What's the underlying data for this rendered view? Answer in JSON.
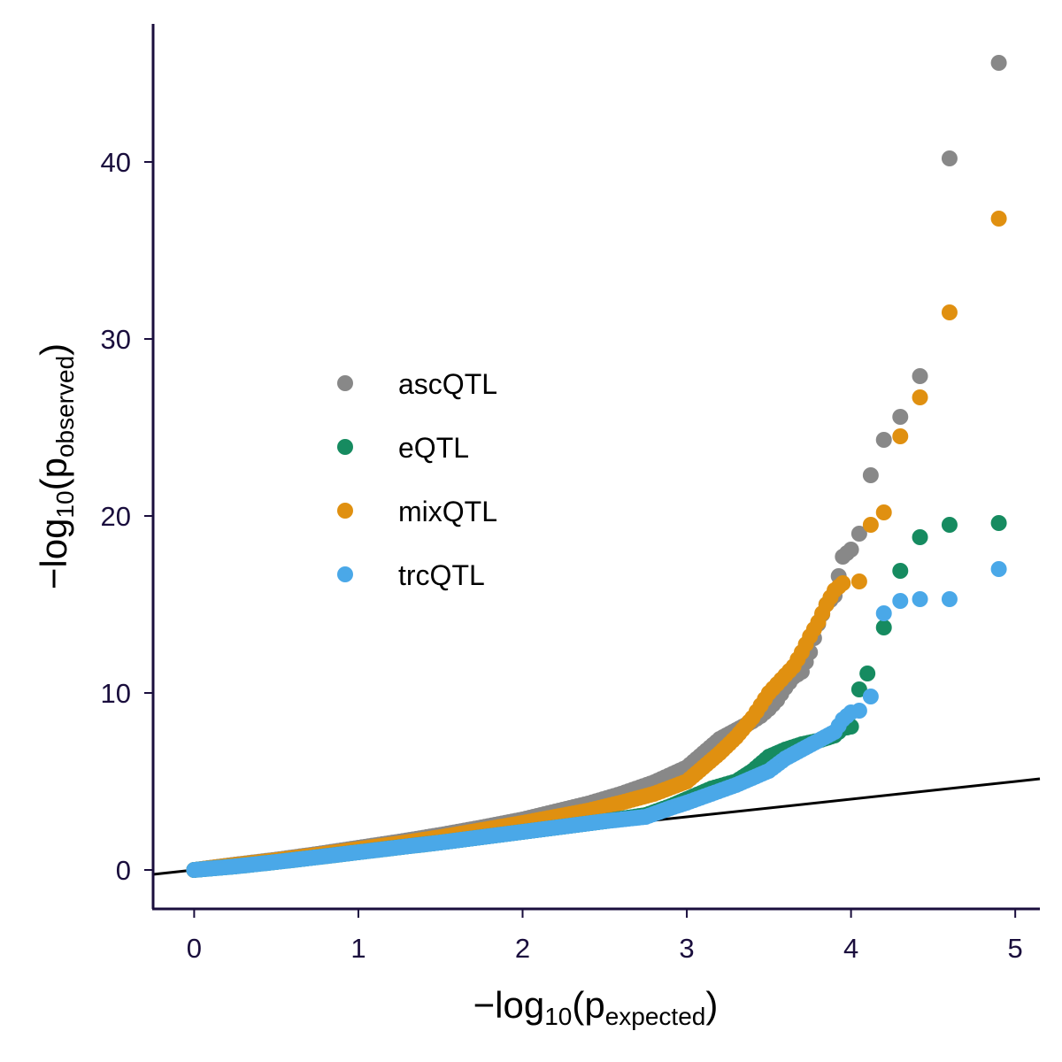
{
  "chart_data": {
    "type": "scatter",
    "title": "",
    "xlabel": {
      "prefix": "−log",
      "sub": "10",
      "open": "(p",
      "sub2": "expected",
      "close": ")"
    },
    "ylabel": {
      "prefix": "−log",
      "sub": "10",
      "open": "(p",
      "sub2": "observed",
      "close": ")"
    },
    "xlim": [
      -0.25,
      5.15
    ],
    "ylim": [
      -2.2,
      47.8
    ],
    "x_ticks": [
      0,
      1,
      2,
      3,
      4,
      5
    ],
    "x_tick_labels": [
      "0",
      "1",
      "2",
      "3",
      "4",
      "5"
    ],
    "y_ticks": [
      0,
      10,
      20,
      30,
      40
    ],
    "y_tick_labels": [
      "0",
      "10",
      "20",
      "30",
      "40"
    ],
    "grid": false,
    "legend_position": "center-left",
    "reference_line": {
      "slope": 1,
      "intercept": 0,
      "color": "#000000"
    },
    "series": [
      {
        "name": "ascQTL",
        "color": "#888888",
        "points": [
          [
            0,
            0
          ],
          [
            0.25,
            0.3
          ],
          [
            0.5,
            0.58
          ],
          [
            0.75,
            0.9
          ],
          [
            1.0,
            1.25
          ],
          [
            1.25,
            1.6
          ],
          [
            1.5,
            1.98
          ],
          [
            1.75,
            2.4
          ],
          [
            2.0,
            2.85
          ],
          [
            2.2,
            3.3
          ],
          [
            2.4,
            3.75
          ],
          [
            2.6,
            4.3
          ],
          [
            2.8,
            4.95
          ],
          [
            3.0,
            5.8
          ],
          [
            3.1,
            6.6
          ],
          [
            3.2,
            7.4
          ],
          [
            3.3,
            7.9
          ],
          [
            3.4,
            8.4
          ],
          [
            3.45,
            8.7
          ],
          [
            3.5,
            9.1
          ],
          [
            3.55,
            9.6
          ],
          [
            3.6,
            10.3
          ],
          [
            3.65,
            10.9
          ],
          [
            3.7,
            11.2
          ],
          [
            3.75,
            12.3
          ],
          [
            3.8,
            13.9
          ],
          [
            3.85,
            15.0
          ],
          [
            3.9,
            15.5
          ],
          [
            3.95,
            17.7
          ],
          [
            4.0,
            18.1
          ],
          [
            4.05,
            19.0
          ],
          [
            4.12,
            22.3
          ],
          [
            4.2,
            24.3
          ],
          [
            4.3,
            25.6
          ],
          [
            4.42,
            27.9
          ],
          [
            4.6,
            40.2
          ],
          [
            4.9,
            45.6
          ]
        ]
      },
      {
        "name": "eQTL",
        "color": "#168b60",
        "points": [
          [
            0,
            0
          ],
          [
            0.25,
            0.2
          ],
          [
            0.5,
            0.45
          ],
          [
            0.75,
            0.72
          ],
          [
            1.0,
            1.0
          ],
          [
            1.25,
            1.28
          ],
          [
            1.5,
            1.55
          ],
          [
            1.75,
            1.85
          ],
          [
            2.0,
            2.15
          ],
          [
            2.25,
            2.45
          ],
          [
            2.5,
            2.75
          ],
          [
            2.75,
            3.1
          ],
          [
            2.9,
            3.6
          ],
          [
            3.0,
            4.0
          ],
          [
            3.15,
            4.6
          ],
          [
            3.3,
            5.0
          ],
          [
            3.4,
            5.6
          ],
          [
            3.5,
            6.4
          ],
          [
            3.6,
            6.8
          ],
          [
            3.7,
            7.1
          ],
          [
            3.8,
            7.3
          ],
          [
            3.9,
            7.6
          ],
          [
            3.95,
            8.0
          ],
          [
            4.0,
            8.1
          ],
          [
            4.05,
            10.2
          ],
          [
            4.1,
            11.1
          ],
          [
            4.2,
            13.7
          ],
          [
            4.3,
            16.9
          ],
          [
            4.42,
            18.8
          ],
          [
            4.6,
            19.5
          ],
          [
            4.9,
            19.6
          ]
        ]
      },
      {
        "name": "mixQTL",
        "color": "#e09010",
        "points": [
          [
            0,
            0
          ],
          [
            0.25,
            0.28
          ],
          [
            0.5,
            0.55
          ],
          [
            0.75,
            0.85
          ],
          [
            1.0,
            1.18
          ],
          [
            1.25,
            1.5
          ],
          [
            1.5,
            1.85
          ],
          [
            1.75,
            2.25
          ],
          [
            2.0,
            2.65
          ],
          [
            2.2,
            3.0
          ],
          [
            2.4,
            3.35
          ],
          [
            2.6,
            3.8
          ],
          [
            2.8,
            4.3
          ],
          [
            3.0,
            5.0
          ],
          [
            3.1,
            5.8
          ],
          [
            3.2,
            6.6
          ],
          [
            3.3,
            7.5
          ],
          [
            3.4,
            8.6
          ],
          [
            3.45,
            9.3
          ],
          [
            3.5,
            10.0
          ],
          [
            3.55,
            10.5
          ],
          [
            3.6,
            11.0
          ],
          [
            3.65,
            11.5
          ],
          [
            3.7,
            12.3
          ],
          [
            3.75,
            13.2
          ],
          [
            3.8,
            14.0
          ],
          [
            3.85,
            15.0
          ],
          [
            3.9,
            15.8
          ],
          [
            3.95,
            16.2
          ],
          [
            4.05,
            16.3
          ],
          [
            4.12,
            19.5
          ],
          [
            4.2,
            20.2
          ],
          [
            4.3,
            24.5
          ],
          [
            4.42,
            26.7
          ],
          [
            4.6,
            31.5
          ],
          [
            4.9,
            36.8
          ]
        ]
      },
      {
        "name": "trcQTL",
        "color": "#4aa8e8",
        "points": [
          [
            0,
            0
          ],
          [
            0.25,
            0.2
          ],
          [
            0.5,
            0.45
          ],
          [
            0.75,
            0.72
          ],
          [
            1.0,
            1.0
          ],
          [
            1.25,
            1.28
          ],
          [
            1.5,
            1.55
          ],
          [
            1.75,
            1.85
          ],
          [
            2.0,
            2.15
          ],
          [
            2.25,
            2.45
          ],
          [
            2.5,
            2.75
          ],
          [
            2.75,
            3.0
          ],
          [
            2.9,
            3.5
          ],
          [
            3.0,
            3.8
          ],
          [
            3.15,
            4.3
          ],
          [
            3.3,
            4.8
          ],
          [
            3.4,
            5.2
          ],
          [
            3.5,
            5.6
          ],
          [
            3.6,
            6.3
          ],
          [
            3.7,
            6.8
          ],
          [
            3.8,
            7.3
          ],
          [
            3.9,
            7.8
          ],
          [
            3.95,
            8.5
          ],
          [
            4.0,
            8.9
          ],
          [
            4.05,
            9.0
          ],
          [
            4.12,
            9.8
          ],
          [
            4.2,
            14.5
          ],
          [
            4.3,
            15.2
          ],
          [
            4.42,
            15.3
          ],
          [
            4.6,
            15.3
          ],
          [
            4.9,
            17.0
          ]
        ]
      }
    ]
  }
}
